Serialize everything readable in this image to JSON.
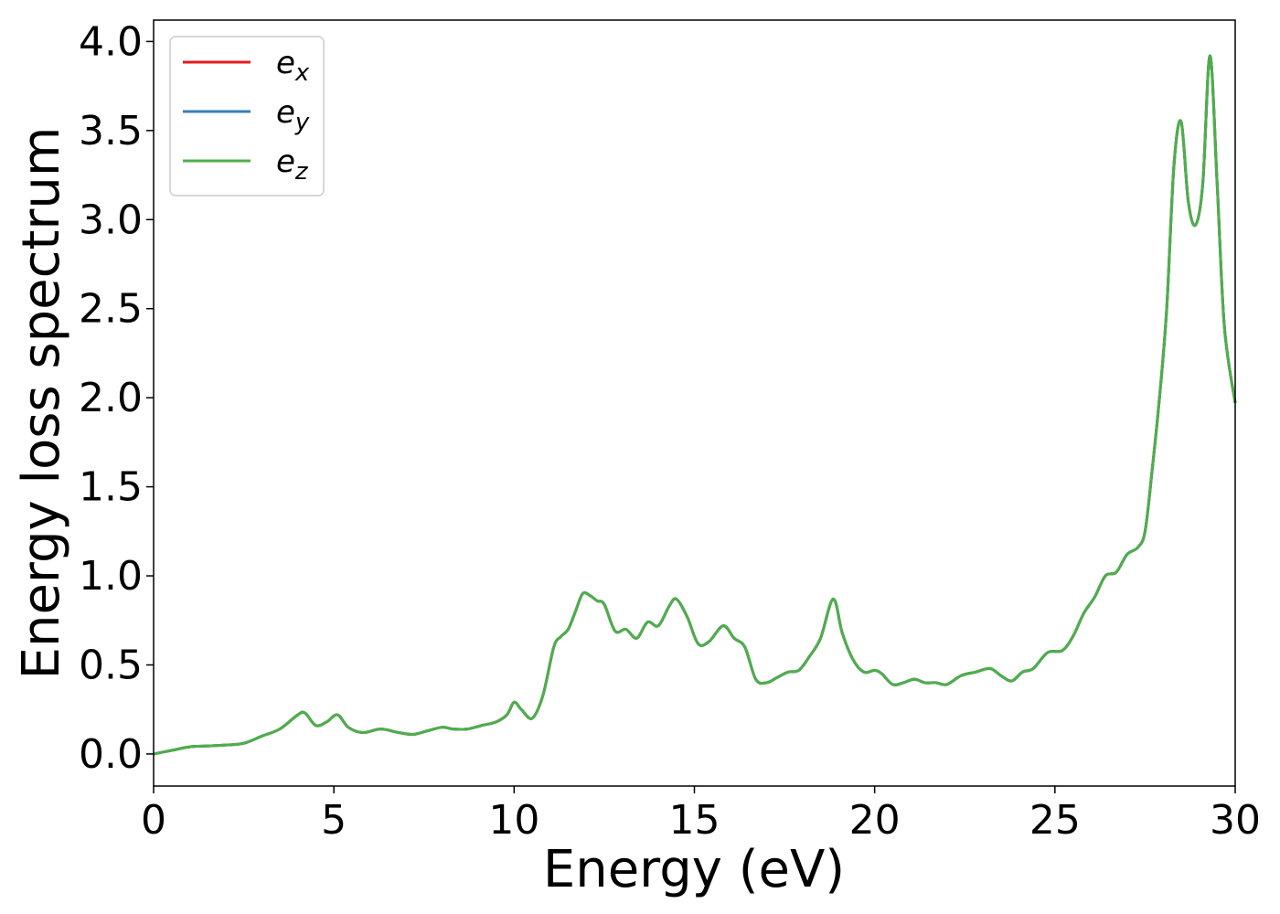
{
  "chart_data": {
    "type": "line",
    "title": "",
    "xlabel": "Energy (eV)",
    "ylabel": "Energy loss spectrum",
    "xlim": [
      0,
      30
    ],
    "ylim": [
      -0.18,
      4.12
    ],
    "xticks": [
      0,
      5,
      10,
      15,
      20,
      25,
      30
    ],
    "xtick_labels": [
      "0",
      "5",
      "10",
      "15",
      "20",
      "25",
      "30"
    ],
    "yticks": [
      0.0,
      0.5,
      1.0,
      1.5,
      2.0,
      2.5,
      3.0,
      3.5,
      4.0
    ],
    "ytick_labels": [
      "0.0",
      "0.5",
      "1.0",
      "1.5",
      "2.0",
      "2.5",
      "3.0",
      "3.5",
      "4.0"
    ],
    "grid": false,
    "legend_position": "top-left",
    "series": [
      {
        "name": "e",
        "subscript": "x",
        "color": "#e41a1c"
      },
      {
        "name": "e",
        "subscript": "y",
        "color": "#377eb8"
      },
      {
        "name": "e",
        "subscript": "z",
        "color": "#4daf4a"
      }
    ],
    "x": [
      0,
      0.5,
      1,
      1.5,
      2,
      2.5,
      3,
      3.5,
      4,
      4.2,
      4.5,
      4.8,
      5.1,
      5.4,
      5.8,
      6.3,
      6.8,
      7.2,
      7.6,
      8.0,
      8.3,
      8.7,
      9.1,
      9.5,
      9.8,
      10.0,
      10.2,
      10.5,
      10.8,
      11.1,
      11.3,
      11.5,
      11.7,
      11.9,
      12.1,
      12.3,
      12.5,
      12.8,
      13.1,
      13.4,
      13.7,
      14.0,
      14.3,
      14.5,
      14.8,
      15.1,
      15.4,
      15.8,
      16.1,
      16.4,
      16.7,
      17.0,
      17.3,
      17.6,
      17.9,
      18.2,
      18.5,
      18.85,
      19.1,
      19.4,
      19.7,
      20.0,
      20.2,
      20.5,
      20.8,
      21.1,
      21.4,
      21.7,
      22.0,
      22.4,
      22.8,
      23.2,
      23.5,
      23.8,
      24.1,
      24.4,
      24.8,
      25.2,
      25.5,
      25.8,
      26.1,
      26.4,
      26.7,
      27.0,
      27.3,
      27.5,
      27.7,
      27.9,
      28.1,
      28.3,
      28.5,
      28.7,
      28.9,
      29.1,
      29.3,
      29.5,
      29.7,
      30.0
    ],
    "y": [
      0.0,
      0.02,
      0.04,
      0.045,
      0.05,
      0.06,
      0.1,
      0.14,
      0.22,
      0.23,
      0.16,
      0.18,
      0.22,
      0.15,
      0.12,
      0.14,
      0.12,
      0.11,
      0.13,
      0.15,
      0.14,
      0.14,
      0.16,
      0.18,
      0.22,
      0.29,
      0.25,
      0.2,
      0.33,
      0.6,
      0.66,
      0.7,
      0.8,
      0.9,
      0.89,
      0.86,
      0.84,
      0.69,
      0.7,
      0.65,
      0.74,
      0.72,
      0.83,
      0.87,
      0.77,
      0.62,
      0.63,
      0.72,
      0.65,
      0.6,
      0.42,
      0.4,
      0.43,
      0.46,
      0.47,
      0.55,
      0.65,
      0.87,
      0.68,
      0.53,
      0.46,
      0.47,
      0.45,
      0.39,
      0.4,
      0.42,
      0.4,
      0.4,
      0.39,
      0.44,
      0.46,
      0.48,
      0.44,
      0.41,
      0.46,
      0.48,
      0.57,
      0.58,
      0.66,
      0.79,
      0.88,
      1.0,
      1.02,
      1.12,
      1.16,
      1.25,
      1.6,
      2.0,
      2.5,
      3.3,
      3.55,
      3.1,
      2.97,
      3.2,
      3.92,
      3.2,
      2.4,
      1.97
    ]
  }
}
